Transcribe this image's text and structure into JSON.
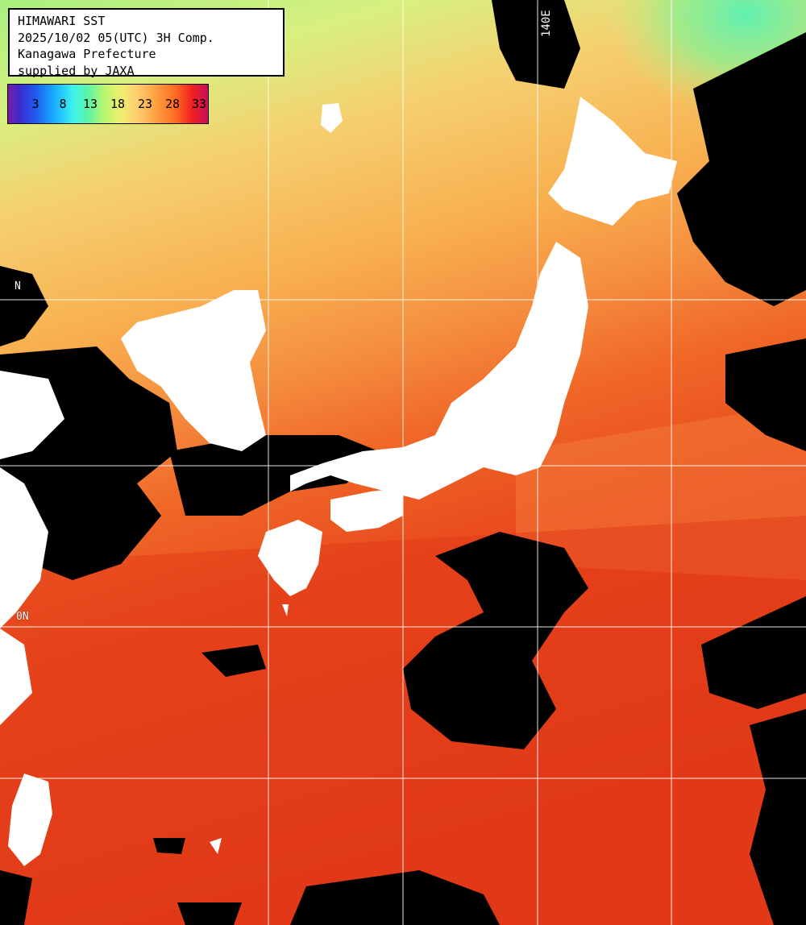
{
  "header": {
    "line1": "HIMAWARI SST",
    "line2": "2025/10/02 05(UTC) 3H Comp.",
    "line3": "Kanagawa Prefecture",
    "line4": "supplied by JAXA"
  },
  "colorbar": {
    "ticks": [
      "3",
      "8",
      "13",
      "18",
      "23",
      "28",
      "33"
    ]
  },
  "grid_labels": {
    "lon_140e": "140E",
    "lat_upper": "N",
    "lat_lower": "0N"
  },
  "colors": {
    "land": "#ffffff",
    "cloud": "#000000",
    "warm_sea": "#e8401a",
    "cool_sea": "#f5c860",
    "cold_sea": "#b8f070",
    "grid": "#ffffff"
  }
}
